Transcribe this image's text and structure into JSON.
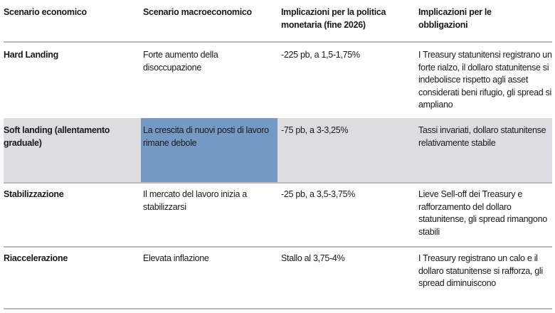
{
  "table": {
    "headers": [
      "Scenario economico",
      "Scenario macroeconomico",
      "Implicazioni per la politica monetaria (fine 2026)",
      "Implicazioni per le obbligazioni"
    ],
    "rows": [
      [
        "Hard Landing",
        "Forte aumento della disoccupazione",
        "-225 pb, a 1,5-1,75%",
        "I Treasury statunitensi registrano un forte rialzo, il dollaro statunitense si indebolisce rispetto agli asset considerati beni rifugio, gli spread si ampliano"
      ],
      [
        "Soft landing (allentamento graduale)",
        "La crescita di nuovi posti di lavoro rimane debole",
        "-75 pb, a 3-3,25%",
        "Tassi invariati, dollaro statunitense relativamente stabile"
      ],
      [
        "Stabilizzazione",
        "Il mercato del lavoro inizia a stabilizzarsi",
        "-25 pb, a 3,5-3,75%",
        "Lieve Sell-off dei Treasury e rafforzamento del dollaro statunitense, gli spread rimangono stabili"
      ],
      [
        "Riaccelerazione",
        "Elevata inflazione",
        "Stallo al 3,75-4%",
        "I Treasury registrano un calo e il dollaro statunitense si rafforza, gli spread diminuiscono"
      ]
    ],
    "colors": {
      "highlight_row": "#dcdce1",
      "highlight_cell": "#7499c5",
      "rule": "#b9b9bd"
    }
  }
}
